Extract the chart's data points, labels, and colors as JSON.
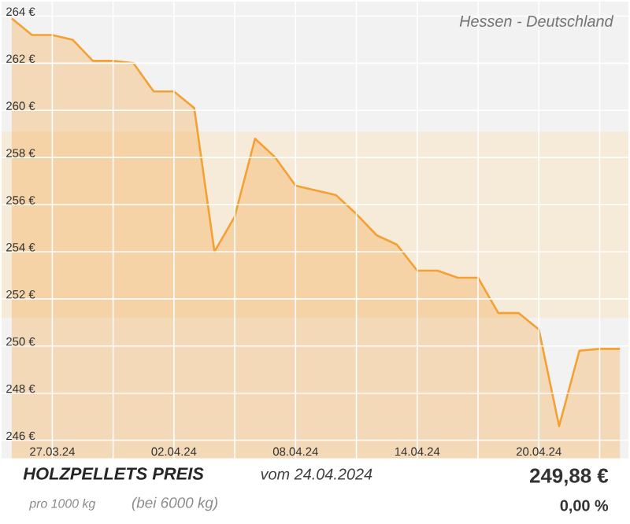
{
  "chart_data": {
    "type": "area",
    "title": "HOLZPELLETS PREIS",
    "subtitle": "Hessen - Deutschland",
    "annotations": [
      "vom 24.04.2024",
      "pro 1000 kg",
      "(bei 6000 kg)",
      "249,88 €",
      "0,00 %"
    ],
    "x": [
      "2024-03-25",
      "2024-03-26",
      "2024-03-27",
      "2024-03-28",
      "2024-03-29",
      "2024-03-30",
      "2024-03-31",
      "2024-04-01",
      "2024-04-02",
      "2024-04-03",
      "2024-04-04",
      "2024-04-05",
      "2024-04-06",
      "2024-04-07",
      "2024-04-08",
      "2024-04-09",
      "2024-04-10",
      "2024-04-11",
      "2024-04-12",
      "2024-04-13",
      "2024-04-14",
      "2024-04-15",
      "2024-04-16",
      "2024-04-17",
      "2024-04-18",
      "2024-04-19",
      "2024-04-20",
      "2024-04-21",
      "2024-04-22",
      "2024-04-23",
      "2024-04-24"
    ],
    "values": [
      263.9,
      263.2,
      263.2,
      263.0,
      262.1,
      262.1,
      262.0,
      260.8,
      260.8,
      260.1,
      254.0,
      255.5,
      258.8,
      258.0,
      256.8,
      256.6,
      256.4,
      255.6,
      254.7,
      254.3,
      253.2,
      253.2,
      252.9,
      252.9,
      251.4,
      251.4,
      250.7,
      246.6,
      249.8,
      249.88,
      249.88
    ],
    "color": "#f5a033",
    "xlim": [
      "2024-03-24T11:00",
      "2024-04-24T11:00"
    ],
    "ylim": [
      245.2,
      264.65
    ],
    "xticks": [
      {
        "value": "2024-03-27",
        "label": "27.03.24"
      },
      {
        "value": "2024-03-30",
        "label": null
      },
      {
        "value": "2024-04-02",
        "label": "02.04.24"
      },
      {
        "value": "2024-04-05",
        "label": null
      },
      {
        "value": "2024-04-08",
        "label": "08.04.24"
      },
      {
        "value": "2024-04-11",
        "label": null
      },
      {
        "value": "2024-04-14",
        "label": "14.04.24"
      },
      {
        "value": "2024-04-17",
        "label": null
      },
      {
        "value": "2024-04-20",
        "label": "20.04.24"
      },
      {
        "value": "2024-04-23",
        "label": null
      }
    ],
    "yticks": [
      {
        "value": 246,
        "label": "246 €"
      },
      {
        "value": 248,
        "label": "248 €"
      },
      {
        "value": 250,
        "label": "250 €"
      },
      {
        "value": 252,
        "label": "252 €"
      },
      {
        "value": 254,
        "label": "254 €"
      },
      {
        "value": 256,
        "label": "256 €"
      },
      {
        "value": 258,
        "label": "258 €"
      },
      {
        "value": 260,
        "label": "260 €"
      },
      {
        "value": 262,
        "label": "262 €"
      },
      {
        "value": 264,
        "label": "264 €"
      }
    ],
    "bands": [
      {
        "axis": "y",
        "from": 251.2,
        "to": 259.1,
        "color": "#f6ead8"
      }
    ],
    "grid": true
  }
}
